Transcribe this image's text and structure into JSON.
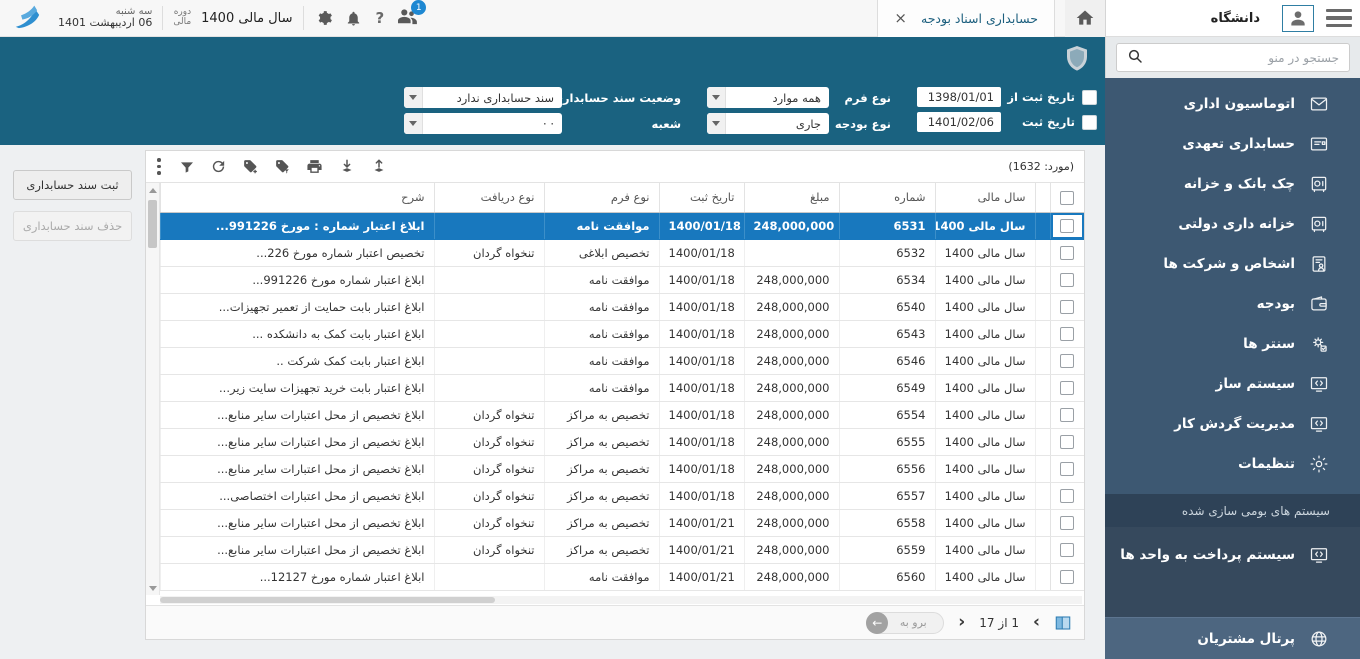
{
  "topbar": {
    "weekday": "سه شنبه",
    "date": "06 اردیبهشت 1401",
    "period_label_1": "دوره",
    "period_label_2": "مالی",
    "fiscal_year": "سال مالی 1400",
    "notification_count": "1",
    "help_glyph": "?"
  },
  "tab": {
    "label": "حسابداری اسناد بودجه",
    "close_glyph": "×"
  },
  "sidebar_header": {
    "org": "دانشگاه"
  },
  "search": {
    "placeholder": "جستجو در منو"
  },
  "sidebar": {
    "items": [
      {
        "label": "اتوماسیون اداری",
        "icon": "envelope-icon"
      },
      {
        "label": "حسابداری تعهدی",
        "icon": "ledger-icon"
      },
      {
        "label": "چک بانک و خزانه",
        "icon": "safe-icon"
      },
      {
        "label": "خزانه داری دولتی",
        "icon": "safe-icon"
      },
      {
        "label": "اشخاص و شرکت ها",
        "icon": "people-doc-icon"
      },
      {
        "label": "بودجه",
        "icon": "wallet-icon"
      },
      {
        "label": "سنتر ها",
        "icon": "gears-icon"
      },
      {
        "label": "سیستم ساز",
        "icon": "monitor-code-icon"
      },
      {
        "label": "مدیریت گردش کار",
        "icon": "monitor-code-icon"
      },
      {
        "label": "تنظیمات",
        "icon": "gear-icon"
      }
    ],
    "section_header": "سیستم های بومی سازی شده",
    "section_items": [
      {
        "label": "سیستم پرداخت به واحد ها",
        "icon": "monitor-code-icon"
      }
    ],
    "footer": {
      "label": "پرتال مشتریان",
      "icon": "globe-icon"
    }
  },
  "filters": {
    "date_from_label": "تاریخ ثبت از",
    "date_from_value": "1398/01/01",
    "date_to_label": "تاریخ ثبت",
    "date_to_value": "1401/02/06",
    "form_type_label": "نوع فرم",
    "form_type_value": "همه موارد",
    "budget_type_label": "نوع بودجه",
    "budget_type_value": "جاری",
    "doc_status_label": "وضعیت سند حسابداری",
    "doc_status_value": "سند حسابداری ندارد",
    "branch_label": "شعبه",
    "branch_value": "· ·"
  },
  "left_actions": {
    "register": "ثبت سند حسابداری",
    "delete": "حذف سند حسابداری"
  },
  "toolbar": {
    "count": "(مورد: 1632)"
  },
  "table": {
    "headers": [
      "سال مالی",
      "شماره",
      "مبلغ",
      "تاریخ ثبت",
      "نوع فرم",
      "نوع دریافت",
      "شرح"
    ],
    "rows": [
      {
        "year": "سال مالی 1400",
        "number": "6531",
        "amount": "248,000,000",
        "date": "1400/01/18",
        "form": "موافقت نامه",
        "receipt": "",
        "desc": "ابلاغ اعتبار شماره : مورخ 991226...",
        "selected": true
      },
      {
        "year": "سال مالی 1400",
        "number": "6532",
        "amount": "",
        "date": "1400/01/18",
        "form": "تخصیص ابلاغی",
        "receipt": "تنخواه گردان",
        "desc": "تخصیص اعتبار شماره مورخ 226...",
        "selected": false
      },
      {
        "year": "سال مالی 1400",
        "number": "6534",
        "amount": "248,000,000",
        "date": "1400/01/18",
        "form": "موافقت نامه",
        "receipt": "",
        "desc": "ابلاغ اعتبار شماره مورخ 991226...",
        "selected": false
      },
      {
        "year": "سال مالی 1400",
        "number": "6540",
        "amount": "248,000,000",
        "date": "1400/01/18",
        "form": "موافقت نامه",
        "receipt": "",
        "desc": "ابلاغ اعتبار بابت حمایت از تعمیر تجهیزات...",
        "selected": false
      },
      {
        "year": "سال مالی 1400",
        "number": "6543",
        "amount": "248,000,000",
        "date": "1400/01/18",
        "form": "موافقت نامه",
        "receipt": "",
        "desc": "ابلاغ اعتبار بابت کمک به دانشکده ...",
        "selected": false
      },
      {
        "year": "سال مالی 1400",
        "number": "6546",
        "amount": "248,000,000",
        "date": "1400/01/18",
        "form": "موافقت نامه",
        "receipt": "",
        "desc": "ابلاغ اعتبار بابت کمک شرکت ..",
        "selected": false
      },
      {
        "year": "سال مالی 1400",
        "number": "6549",
        "amount": "248,000,000",
        "date": "1400/01/18",
        "form": "موافقت نامه",
        "receipt": "",
        "desc": "ابلاغ اعتبار بابت خرید تجهیزات سایت زیر...",
        "selected": false
      },
      {
        "year": "سال مالی 1400",
        "number": "6554",
        "amount": "248,000,000",
        "date": "1400/01/18",
        "form": "تخصیص به مراکز",
        "receipt": "تنخواه گردان",
        "desc": "ابلاغ تخصیص از محل اعتبارات سایر منابع...",
        "selected": false
      },
      {
        "year": "سال مالی 1400",
        "number": "6555",
        "amount": "248,000,000",
        "date": "1400/01/18",
        "form": "تخصیص به مراکز",
        "receipt": "تنخواه گردان",
        "desc": "ابلاغ تخصیص از محل اعتبارات سایر منابع...",
        "selected": false
      },
      {
        "year": "سال مالی 1400",
        "number": "6556",
        "amount": "248,000,000",
        "date": "1400/01/18",
        "form": "تخصیص به مراکز",
        "receipt": "تنخواه گردان",
        "desc": "ابلاغ تخصیص از محل اعتبارات سایر منابع...",
        "selected": false
      },
      {
        "year": "سال مالی 1400",
        "number": "6557",
        "amount": "248,000,000",
        "date": "1400/01/18",
        "form": "تخصیص به مراکز",
        "receipt": "تنخواه گردان",
        "desc": "ابلاغ تخصیص از محل اعتبارات اختصاصی...",
        "selected": false
      },
      {
        "year": "سال مالی 1400",
        "number": "6558",
        "amount": "248,000,000",
        "date": "1400/01/21",
        "form": "تخصیص به مراکز",
        "receipt": "تنخواه گردان",
        "desc": "ابلاغ تخصیص از محل اعتبارات سایر منابع...",
        "selected": false
      },
      {
        "year": "سال مالی 1400",
        "number": "6559",
        "amount": "248,000,000",
        "date": "1400/01/21",
        "form": "تخصیص به مراکز",
        "receipt": "تنخواه گردان",
        "desc": "ابلاغ تخصیص از محل اعتبارات سایر منابع...",
        "selected": false
      },
      {
        "year": "سال مالی 1400",
        "number": "6560",
        "amount": "248,000,000",
        "date": "1400/01/21",
        "form": "موافقت نامه",
        "receipt": "",
        "desc": "ابلاغ اعتبار شماره مورخ 12127...",
        "selected": false
      }
    ]
  },
  "pagination": {
    "page_info": "1 از 17",
    "next_glyph": "›",
    "prev_glyph": "‹",
    "goto_label": "برو به",
    "goto_arrow": "←"
  },
  "colors": {
    "accent": "#1a6280",
    "selected_row": "#1878be",
    "sidebar": "#3d5872",
    "badge": "#1e88d2"
  }
}
